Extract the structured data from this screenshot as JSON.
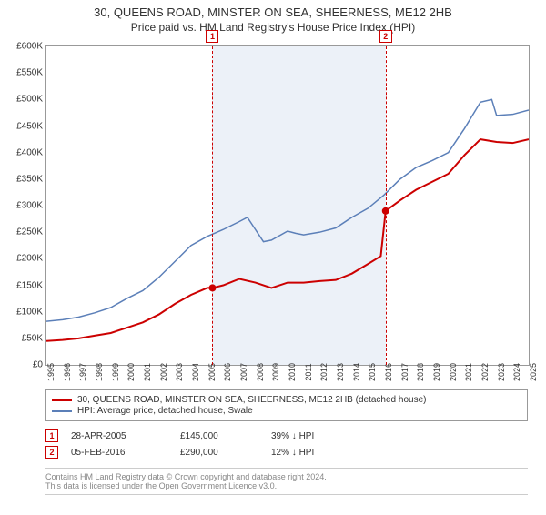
{
  "title": "30, QUEENS ROAD, MINSTER ON SEA, SHEERNESS, ME12 2HB",
  "subtitle": "Price paid vs. HM Land Registry's House Price Index (HPI)",
  "chart": {
    "type": "line",
    "background_color": "#ffffff",
    "border_color": "#999999",
    "shade_color": "rgba(200,215,235,0.35)",
    "x_start_year": 1995,
    "x_end_year": 2025,
    "xticks": [
      1995,
      1996,
      1997,
      1998,
      1999,
      2000,
      2001,
      2002,
      2003,
      2004,
      2005,
      2006,
      2007,
      2008,
      2009,
      2010,
      2011,
      2012,
      2013,
      2014,
      2015,
      2016,
      2017,
      2018,
      2019,
      2020,
      2021,
      2022,
      2023,
      2024,
      2025
    ],
    "ylim": [
      0,
      600000
    ],
    "ytick_step": 50000,
    "y_prefix": "£",
    "y_suffix": "K",
    "series": [
      {
        "name": "property",
        "label": "30, QUEENS ROAD, MINSTER ON SEA, SHEERNESS, ME12 2HB (detached house)",
        "color": "#cc0000",
        "line_width": 2,
        "data": [
          [
            1995,
            45000
          ],
          [
            1996,
            47000
          ],
          [
            1997,
            50000
          ],
          [
            1998,
            55000
          ],
          [
            1999,
            60000
          ],
          [
            2000,
            70000
          ],
          [
            2001,
            80000
          ],
          [
            2002,
            95000
          ],
          [
            2003,
            115000
          ],
          [
            2004,
            132000
          ],
          [
            2005,
            145000
          ],
          [
            2005.33,
            145000
          ],
          [
            2006,
            150000
          ],
          [
            2007,
            162000
          ],
          [
            2008,
            155000
          ],
          [
            2009,
            145000
          ],
          [
            2010,
            155000
          ],
          [
            2011,
            155000
          ],
          [
            2012,
            158000
          ],
          [
            2013,
            160000
          ],
          [
            2014,
            172000
          ],
          [
            2015,
            190000
          ],
          [
            2015.8,
            205000
          ],
          [
            2016.1,
            290000
          ],
          [
            2017,
            310000
          ],
          [
            2018,
            330000
          ],
          [
            2019,
            345000
          ],
          [
            2020,
            360000
          ],
          [
            2021,
            395000
          ],
          [
            2022,
            425000
          ],
          [
            2023,
            420000
          ],
          [
            2024,
            418000
          ],
          [
            2025,
            425000
          ]
        ]
      },
      {
        "name": "hpi",
        "label": "HPI: Average price, detached house, Swale",
        "color": "#5b7fb8",
        "line_width": 1.5,
        "data": [
          [
            1995,
            82000
          ],
          [
            1996,
            85000
          ],
          [
            1997,
            90000
          ],
          [
            1998,
            98000
          ],
          [
            1999,
            108000
          ],
          [
            2000,
            125000
          ],
          [
            2001,
            140000
          ],
          [
            2002,
            165000
          ],
          [
            2003,
            195000
          ],
          [
            2004,
            225000
          ],
          [
            2005,
            242000
          ],
          [
            2006,
            255000
          ],
          [
            2007,
            270000
          ],
          [
            2007.5,
            278000
          ],
          [
            2008,
            255000
          ],
          [
            2008.5,
            232000
          ],
          [
            2009,
            235000
          ],
          [
            2010,
            252000
          ],
          [
            2010.5,
            248000
          ],
          [
            2011,
            245000
          ],
          [
            2012,
            250000
          ],
          [
            2013,
            258000
          ],
          [
            2014,
            278000
          ],
          [
            2015,
            295000
          ],
          [
            2016,
            320000
          ],
          [
            2017,
            350000
          ],
          [
            2018,
            372000
          ],
          [
            2019,
            385000
          ],
          [
            2020,
            400000
          ],
          [
            2021,
            445000
          ],
          [
            2022,
            495000
          ],
          [
            2022.7,
            500000
          ],
          [
            2023,
            470000
          ],
          [
            2024,
            472000
          ],
          [
            2025,
            480000
          ]
        ]
      }
    ],
    "markers": [
      {
        "n": "1",
        "year": 2005.33,
        "value": 145000
      },
      {
        "n": "2",
        "year": 2016.1,
        "value": 290000
      }
    ]
  },
  "legend": {
    "items": [
      {
        "color": "#cc0000",
        "label_path": "chart.series.0.label"
      },
      {
        "color": "#5b7fb8",
        "label_path": "chart.series.1.label"
      }
    ]
  },
  "sales": [
    {
      "n": "1",
      "date": "28-APR-2005",
      "price": "£145,000",
      "diff": "39% ↓ HPI"
    },
    {
      "n": "2",
      "date": "05-FEB-2016",
      "price": "£290,000",
      "diff": "12% ↓ HPI"
    }
  ],
  "footer": {
    "line1": "Contains HM Land Registry data © Crown copyright and database right 2024.",
    "line2": "This data is licensed under the Open Government Licence v3.0."
  }
}
